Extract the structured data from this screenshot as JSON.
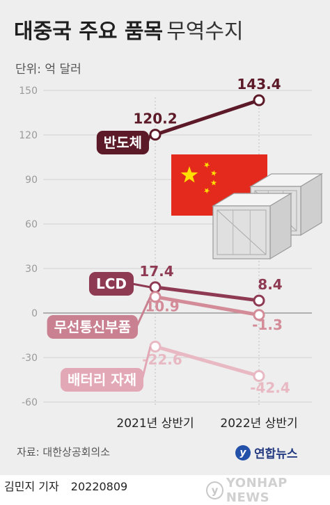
{
  "title_bold": "대중국 주요 품목",
  "title_light": "무역수지",
  "unit": "단위: 억 달러",
  "source": "자료: 대한상공회의소",
  "logo_text": "연합뉴스",
  "reporter": "김민지 기자",
  "date": "20220809",
  "watermark": "YONHAP NEWS",
  "chart_data": {
    "type": "line",
    "categories": [
      "2021년 상반기",
      "2022년 상반기"
    ],
    "ylim": [
      -60,
      150
    ],
    "yticks": [
      150,
      120,
      90,
      60,
      30,
      0,
      -30,
      -60
    ],
    "ytick_labels": [
      "150",
      "120",
      "90",
      "60",
      "30",
      "0",
      "-30",
      "-60"
    ],
    "grid": true,
    "series": [
      {
        "name": "반도체",
        "values": [
          120.2,
          143.4
        ],
        "value_labels": [
          "120.2",
          "143.4"
        ],
        "color": "#5c1a28",
        "label_bg": "#5c1a28"
      },
      {
        "name": "LCD",
        "values": [
          17.4,
          8.4
        ],
        "value_labels": [
          "17.4",
          "8.4"
        ],
        "color": "#8e3a52",
        "label_bg": "#8e3a52"
      },
      {
        "name": "무선통신부품",
        "values": [
          10.9,
          -1.3
        ],
        "value_labels": [
          "10.9",
          "-1.3"
        ],
        "color": "#d38b98",
        "label_bg": "#c98090"
      },
      {
        "name": "배터리 자재",
        "values": [
          -22.6,
          -42.4
        ],
        "value_labels": [
          "-22.6",
          "-42.4"
        ],
        "color": "#e8b9c3",
        "label_bg": "#e3a8b6"
      }
    ]
  },
  "colors": {
    "flag_red": "#e32a1c",
    "flag_star": "#ffde00",
    "crate": "#e0e0e0"
  }
}
